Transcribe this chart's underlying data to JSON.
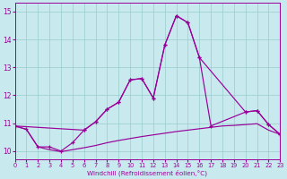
{
  "xlabel": "Windchill (Refroidissement éolien,°C)",
  "bg_color": "#c8eaee",
  "line_color": "#990099",
  "grid_color": "#99cccc",
  "xlim": [
    0,
    23
  ],
  "ylim": [
    9.7,
    15.3
  ],
  "yticks": [
    10,
    11,
    12,
    13,
    14,
    15
  ],
  "xticks": [
    0,
    1,
    2,
    3,
    4,
    5,
    6,
    7,
    8,
    9,
    10,
    11,
    12,
    13,
    14,
    15,
    16,
    17,
    18,
    19,
    20,
    21,
    22,
    23
  ],
  "line1_x": [
    0,
    1,
    2,
    3,
    4,
    5,
    6,
    7,
    8,
    9,
    10,
    11,
    12,
    13,
    14,
    15,
    16,
    17,
    20,
    21,
    22,
    23
  ],
  "line1_y": [
    10.9,
    10.78,
    10.15,
    10.15,
    10.0,
    10.3,
    10.75,
    11.05,
    11.5,
    11.75,
    12.55,
    12.6,
    11.9,
    13.8,
    14.85,
    14.6,
    13.35,
    10.9,
    11.4,
    11.45,
    10.95,
    10.6
  ],
  "line2_x": [
    0,
    6,
    7,
    8,
    9,
    10,
    11,
    12,
    13,
    14,
    15,
    16,
    20,
    21,
    22,
    23
  ],
  "line2_y": [
    10.9,
    10.75,
    11.05,
    11.5,
    11.75,
    12.55,
    12.6,
    11.9,
    13.8,
    14.85,
    14.6,
    13.35,
    11.4,
    11.45,
    10.95,
    10.6
  ],
  "line3_x": [
    0,
    1,
    2,
    3,
    4,
    5,
    6,
    7,
    8,
    9,
    10,
    11,
    12,
    13,
    14,
    15,
    16,
    17,
    18,
    19,
    20,
    21,
    22,
    23
  ],
  "line3_y": [
    10.9,
    10.78,
    10.15,
    10.05,
    9.98,
    10.05,
    10.12,
    10.2,
    10.3,
    10.38,
    10.45,
    10.52,
    10.58,
    10.64,
    10.7,
    10.75,
    10.8,
    10.85,
    10.9,
    10.92,
    10.95,
    10.98,
    10.75,
    10.6
  ]
}
